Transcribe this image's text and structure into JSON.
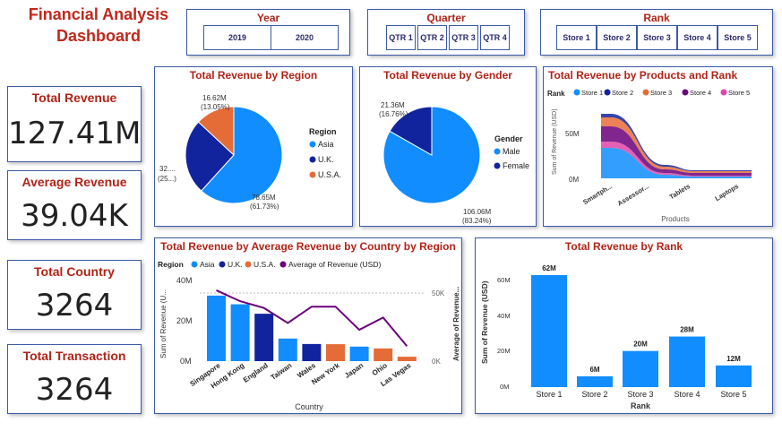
{
  "title_line1": "Financial Analysis",
  "title_line2": "Dashboard",
  "slicers": {
    "year": {
      "title": "Year",
      "items": [
        "2019",
        "2020"
      ]
    },
    "quarter": {
      "title": "Quarter",
      "items": [
        "QTR 1",
        "QTR 2",
        "QTR 3",
        "QTR 4"
      ]
    },
    "rank": {
      "title": "Rank",
      "items": [
        "Store 1",
        "Store 2",
        "Store 3",
        "Store 4",
        "Store 5"
      ]
    }
  },
  "kpis": {
    "total_revenue": {
      "label": "Total Revenue",
      "value": "127.41M"
    },
    "average_revenue": {
      "label": "Average Revenue",
      "value": "39.04K"
    },
    "total_country": {
      "label": "Total Country",
      "value": "3264"
    },
    "total_transaction": {
      "label": "Total Transaction",
      "value": "3264"
    }
  },
  "colors": {
    "blue": "#118dff",
    "navy": "#12239e",
    "orange": "#e66c37",
    "purple": "#6b007b",
    "pink": "#e044a7",
    "title_red": "#b02418"
  },
  "chart_data": [
    {
      "id": "region",
      "type": "pie",
      "title": "Total Revenue by Region",
      "legend_title": "Region",
      "legend_items": [
        "Asia",
        "U.K.",
        "U.S.A."
      ],
      "slices": [
        {
          "name": "Asia",
          "value": 78.65,
          "color": "#118dff"
        },
        {
          "name": "U.K.",
          "value": 32.14,
          "color": "#12239e"
        },
        {
          "name": "U.S.A.",
          "value": 16.62,
          "color": "#e66c37"
        }
      ],
      "labels": {
        "asia_1": "78.65M",
        "asia_2": "(61.73%)",
        "uk_1": "32....",
        "uk_2": "(25...)",
        "usa_1": "16.62M",
        "usa_2": "(13.05%)"
      }
    },
    {
      "id": "gender",
      "type": "pie",
      "title": "Total Revenue by Gender",
      "legend_title": "Gender",
      "legend_items": [
        "Male",
        "Female"
      ],
      "slices": [
        {
          "name": "Male",
          "value": 106.06,
          "color": "#118dff"
        },
        {
          "name": "Female",
          "value": 21.36,
          "color": "#12239e"
        }
      ],
      "labels": {
        "male_1": "106.06M",
        "male_2": "(83.24%)",
        "female_1": "21.36M",
        "female_2": "(16.76%)"
      }
    },
    {
      "id": "products_rank",
      "type": "area",
      "title": "Total Revenue by Products and Rank",
      "legend_title": "Rank",
      "legend_items": [
        "Store 1",
        "Store 2",
        "Store 3",
        "Store 4",
        "Store 5"
      ],
      "categories": [
        "Smartph...",
        "Assessor...",
        "Tablets",
        "Laptops"
      ],
      "xlabel": "Products",
      "ylabel": "Sum of Revenue (USD)",
      "ytick_labels": [
        "0M",
        "50M"
      ],
      "series": [
        {
          "name": "Store 1",
          "values": [
            34,
            4,
            2,
            2
          ],
          "color": "#118dff"
        },
        {
          "name": "Store 2",
          "values": [
            4,
            2,
            1,
            1
          ],
          "color": "#12239e"
        },
        {
          "name": "Store 3",
          "values": [
            10,
            3,
            2,
            2
          ],
          "color": "#e66c37"
        },
        {
          "name": "Store 4",
          "values": [
            17,
            4,
            3,
            3
          ],
          "color": "#6b007b"
        },
        {
          "name": "Store 5",
          "values": [
            7,
            2,
            1,
            1
          ],
          "color": "#e044a7"
        }
      ]
    },
    {
      "id": "country",
      "type": "bar",
      "title": "Total Revenue by Average Revenue by Country by Region",
      "legend_title": "Region",
      "legend_items": [
        "Asia",
        "U.K.",
        "U.S.A.",
        "Average of Revenue (USD)"
      ],
      "categories": [
        "Singapore",
        "Hong Kong",
        "England",
        "Taiwan",
        "Wales",
        "New York",
        "Japan",
        "Ohio",
        "Las Vegas"
      ],
      "values": [
        32.5,
        28.2,
        23.5,
        11.2,
        8.5,
        8.4,
        7.2,
        6.3,
        2.2
      ],
      "regions": [
        "Asia",
        "Asia",
        "U.K.",
        "Asia",
        "U.K.",
        "U.S.A.",
        "Asia",
        "U.S.A.",
        "U.S.A."
      ],
      "line_values": [
        52,
        44,
        39,
        28,
        40,
        40,
        23,
        32,
        11
      ],
      "xlabel": "Country",
      "ylabel": "Sum of Revenue (U...",
      "y2label": "Average of Revenue...",
      "ytick_labels": [
        "0M",
        "20M",
        "40M"
      ],
      "y2tick_labels": [
        "0K",
        "50K"
      ]
    },
    {
      "id": "rank",
      "type": "bar",
      "title": "Total Revenue by Rank",
      "categories": [
        "Store 1",
        "Store 2",
        "Store 3",
        "Store 4",
        "Store 5"
      ],
      "values": [
        62,
        6,
        20,
        28,
        12
      ],
      "data_labels": [
        "62M",
        "6M",
        "20M",
        "28M",
        "12M"
      ],
      "xlabel": "Rank",
      "ylabel": "Sum of Revenue (USD)",
      "ytick_labels": [
        "0M",
        "20M",
        "40M",
        "60M"
      ]
    }
  ]
}
